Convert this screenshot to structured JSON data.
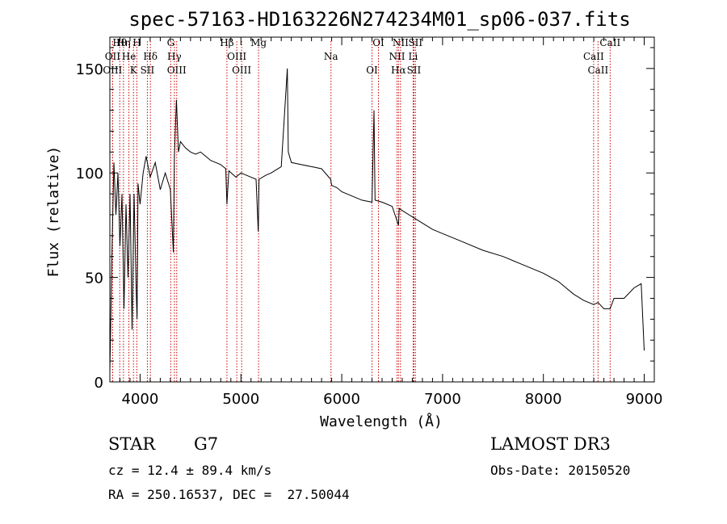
{
  "chart_data": {
    "type": "line",
    "title": "spec-57163-HD163226N274234M01_sp06-037.fits",
    "xlabel": "Wavelength (Å)",
    "ylabel": "Flux (relative)",
    "xlim": [
      3700,
      9100
    ],
    "ylim": [
      0,
      165
    ],
    "xticks": [
      4000,
      5000,
      6000,
      7000,
      8000,
      9000
    ],
    "yticks": [
      0,
      50,
      100,
      150
    ],
    "xtick_labels": [
      "4000",
      "5000",
      "6000",
      "7000",
      "8000",
      "9000"
    ],
    "ytick_labels": [
      "0",
      "50",
      "100",
      "150"
    ],
    "grid": false,
    "series": [
      {
        "name": "spectrum",
        "color": "#000000",
        "x": [
          3700,
          3720,
          3740,
          3760,
          3780,
          3800,
          3820,
          3840,
          3860,
          3880,
          3900,
          3920,
          3940,
          3960,
          3970,
          3980,
          4000,
          4030,
          4060,
          4100,
          4150,
          4200,
          4250,
          4300,
          4330,
          4340,
          4360,
          4380,
          4400,
          4450,
          4500,
          4550,
          4600,
          4650,
          4700,
          4750,
          4800,
          4850,
          4861,
          4880,
          4950,
          5000,
          5050,
          5100,
          5150,
          5172,
          5180,
          5250,
          5300,
          5400,
          5460,
          5470,
          5500,
          5600,
          5700,
          5800,
          5890,
          5900,
          5950,
          6000,
          6050,
          6100,
          6200,
          6300,
          6320,
          6330,
          6400,
          6500,
          6563,
          6570,
          6600,
          6700,
          6800,
          6900,
          7000,
          7200,
          7400,
          7600,
          7800,
          8000,
          8150,
          8200,
          8300,
          8400,
          8498,
          8542,
          8600,
          8662,
          8700,
          8800,
          8900,
          8970,
          9000
        ],
        "y": [
          5,
          60,
          105,
          80,
          100,
          65,
          90,
          35,
          85,
          50,
          90,
          25,
          90,
          45,
          30,
          95,
          85,
          100,
          108,
          98,
          105,
          92,
          100,
          92,
          62,
          108,
          135,
          110,
          115,
          112,
          110,
          109,
          110,
          108,
          106,
          105,
          104,
          102,
          85,
          101,
          98,
          100,
          99,
          98,
          97,
          72,
          97,
          99,
          100,
          103,
          150,
          110,
          105,
          104,
          103,
          102,
          97,
          94,
          93,
          91,
          90,
          89,
          87,
          86,
          130,
          87,
          86,
          84,
          75,
          83,
          82,
          79,
          76,
          73,
          71,
          67,
          63,
          60,
          56,
          52,
          48,
          46,
          42,
          39,
          37,
          38,
          35,
          35,
          40,
          40,
          45,
          47,
          15
        ]
      }
    ],
    "lines": [
      {
        "label": "Hθ",
        "x": 3798
      },
      {
        "label": "OII",
        "x": 3727
      },
      {
        "label": "OIII",
        "x": 3727
      },
      {
        "label": "Hη",
        "x": 3835
      },
      {
        "label": "He",
        "x": 3889
      },
      {
        "label": "K",
        "x": 3934
      },
      {
        "label": "H",
        "x": 3968
      },
      {
        "label": "Hδ",
        "x": 4102
      },
      {
        "label": "SII",
        "x": 4072
      },
      {
        "label": "G",
        "x": 4304
      },
      {
        "label": "Hγ",
        "x": 4340
      },
      {
        "label": "OIII",
        "x": 4363
      },
      {
        "label": "Hβ",
        "x": 4861
      },
      {
        "label": "OIII",
        "x": 4959
      },
      {
        "label": "OIII",
        "x": 5007
      },
      {
        "label": "Mg",
        "x": 5175
      },
      {
        "label": "Na",
        "x": 5893
      },
      {
        "label": "OI",
        "x": 6300
      },
      {
        "label": "OI",
        "x": 6364
      },
      {
        "label": "NII",
        "x": 6548
      },
      {
        "label": "Hα",
        "x": 6563
      },
      {
        "label": "NII",
        "x": 6583
      },
      {
        "label": "Li",
        "x": 6708
      },
      {
        "label": "SII",
        "x": 6716
      },
      {
        "label": "SII",
        "x": 6731
      },
      {
        "label": "CaII",
        "x": 8498
      },
      {
        "label": "CaII",
        "x": 8542
      },
      {
        "label": "CaII",
        "x": 8662
      }
    ]
  },
  "info": {
    "class_label": "STAR",
    "subclass": "G7",
    "survey": "LAMOST DR3",
    "redshift_line": "cz = 12.4 ± 89.4 km/s",
    "obs_date": "Obs-Date: 20150520",
    "coords_line": "RA = 250.16537, DEC =  27.50044"
  },
  "colors": {
    "frame": "#000000",
    "line_markers": "#cc0000"
  }
}
